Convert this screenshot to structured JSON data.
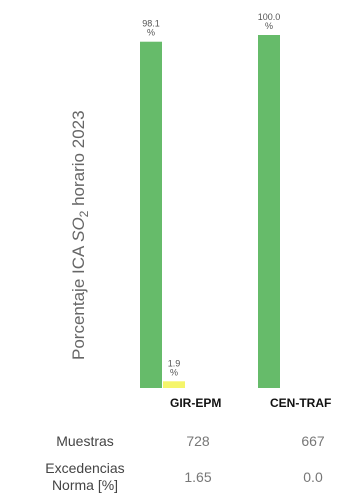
{
  "chart_data": {
    "type": "bar",
    "ylabel": "Porcentaje ICA SO2 horario 2023",
    "ylabel_parts": {
      "prefix": "Porcentaje ICA ",
      "chem": "SO",
      "sub": "2",
      "suffix": " horario 2023"
    },
    "ylim": [
      0,
      100
    ],
    "categories": [
      "GIR-EPM",
      "CEN-TRAF"
    ],
    "series": [
      {
        "color": "#66bb6a",
        "values": [
          98.1,
          100.0
        ]
      },
      {
        "color": "#f5f56a",
        "values": [
          1.9,
          0.0
        ]
      }
    ],
    "data_labels": [
      [
        "98.1\n%",
        "100.0\n%"
      ],
      [
        "1.9\n%",
        ""
      ]
    ]
  },
  "table": {
    "rows": [
      {
        "label": "Muestras",
        "values": [
          "728",
          "667"
        ]
      },
      {
        "label": "Excedencias\nNorma [%]",
        "values": [
          "1.65",
          "0.0"
        ]
      }
    ]
  }
}
